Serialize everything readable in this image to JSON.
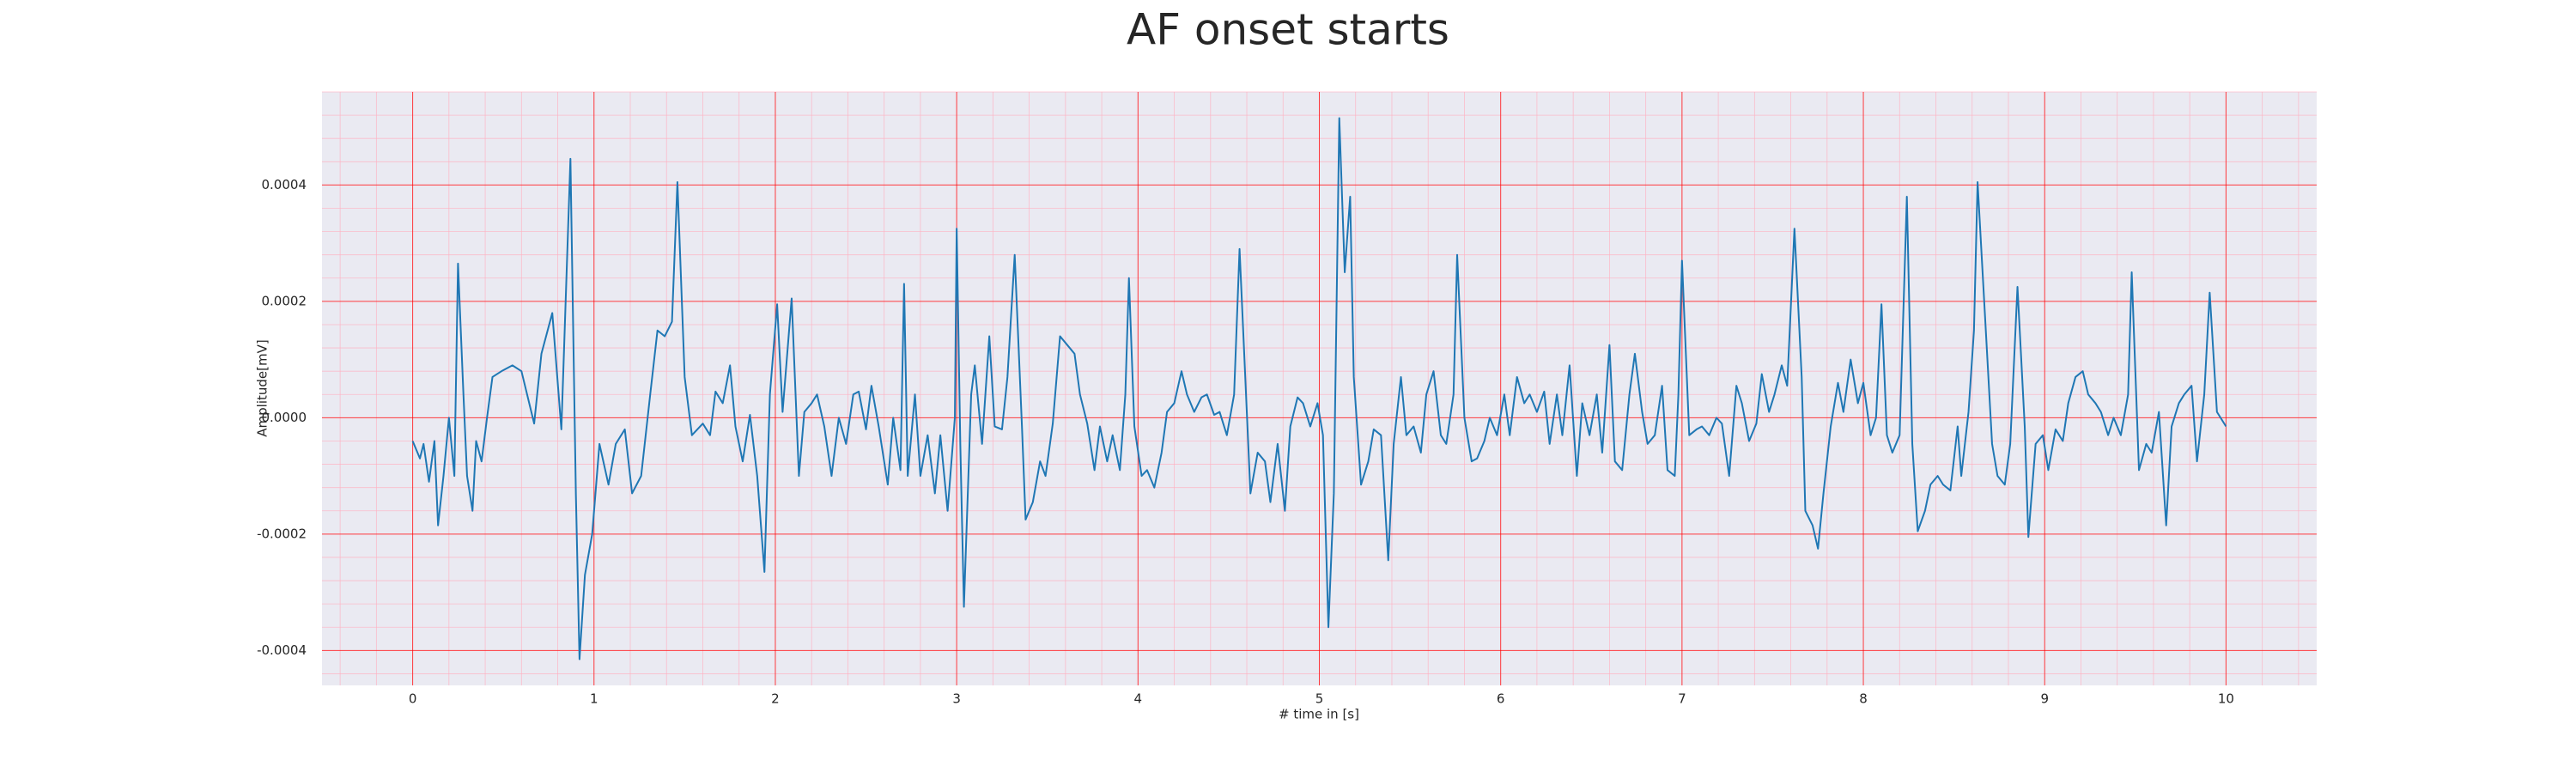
{
  "chart_data": {
    "type": "line",
    "title": "AF onset starts",
    "xlabel": "# time in [s]",
    "ylabel": "Amplitude[mV]",
    "xlim": [
      -0.5,
      10.5
    ],
    "ylim": [
      -0.00046,
      0.00056
    ],
    "xticks": [
      0,
      1,
      2,
      3,
      4,
      5,
      6,
      7,
      8,
      9,
      10
    ],
    "yticks": [
      -0.0004,
      -0.0002,
      {
        "value": 0,
        "label": "0.0000"
      },
      0.0002,
      0.0004
    ],
    "grid": true,
    "minor_grid": true,
    "grid_color": "#ff0000",
    "minor_grid_color": "#ffb0c0",
    "background": "#eaeaf2",
    "color": "#1f77b4",
    "x": [
      0,
      0.04,
      0.06,
      0.09,
      0.12,
      0.14,
      0.17,
      0.2,
      0.23,
      0.25,
      0.28,
      0.3,
      0.33,
      0.35,
      0.38,
      0.41,
      0.44,
      0.49,
      0.55,
      0.6,
      0.67,
      0.71,
      0.77,
      0.82,
      0.87,
      0.9,
      0.92,
      0.95,
      0.99,
      1.03,
      1.08,
      1.12,
      1.17,
      1.21,
      1.26,
      1.31,
      1.35,
      1.39,
      1.43,
      1.46,
      1.5,
      1.54,
      1.6,
      1.64,
      1.67,
      1.71,
      1.75,
      1.78,
      1.82,
      1.86,
      1.9,
      1.94,
      1.97,
      2.01,
      2.04,
      2.09,
      2.13,
      2.16,
      2.2,
      2.23,
      2.27,
      2.31,
      2.35,
      2.39,
      2.43,
      2.46,
      2.5,
      2.53,
      2.57,
      2.62,
      2.65,
      2.69,
      2.71,
      2.73,
      2.77,
      2.8,
      2.84,
      2.88,
      2.91,
      2.95,
      2.99,
      3.0,
      3.02,
      3.04,
      3.08,
      3.1,
      3.14,
      3.18,
      3.21,
      3.25,
      3.28,
      3.32,
      3.36,
      3.38,
      3.42,
      3.46,
      3.49,
      3.53,
      3.57,
      3.61,
      3.65,
      3.68,
      3.72,
      3.76,
      3.79,
      3.83,
      3.86,
      3.9,
      3.93,
      3.95,
      3.98,
      4.02,
      4.05,
      4.09,
      4.13,
      4.16,
      4.2,
      4.24,
      4.27,
      4.31,
      4.35,
      4.38,
      4.42,
      4.45,
      4.49,
      4.53,
      4.56,
      4.6,
      4.62,
      4.66,
      4.7,
      4.73,
      4.77,
      4.81,
      4.84,
      4.88,
      4.91,
      4.95,
      4.99,
      5.02,
      5.05,
      5.08,
      5.11,
      5.14,
      5.17,
      5.19,
      5.23,
      5.27,
      5.3,
      5.34,
      5.38,
      5.41,
      5.45,
      5.48,
      5.52,
      5.56,
      5.59,
      5.63,
      5.67,
      5.7,
      5.74,
      5.76,
      5.8,
      5.84,
      5.87,
      5.91,
      5.94,
      5.98,
      6.02,
      6.05,
      6.09,
      6.13,
      6.16,
      6.2,
      6.24,
      6.27,
      6.31,
      6.34,
      6.38,
      6.42,
      6.45,
      6.49,
      6.53,
      6.56,
      6.6,
      6.63,
      6.67,
      6.71,
      6.74,
      6.78,
      6.81,
      6.85,
      6.89,
      6.92,
      6.96,
      6.98,
      7.0,
      7.04,
      7.08,
      7.11,
      7.15,
      7.19,
      7.22,
      7.26,
      7.3,
      7.33,
      7.37,
      7.41,
      7.44,
      7.48,
      7.51,
      7.55,
      7.58,
      7.62,
      7.66,
      7.68,
      7.72,
      7.75,
      7.78,
      7.82,
      7.86,
      7.89,
      7.93,
      7.97,
      8.0,
      8.04,
      8.07,
      8.1,
      8.13,
      8.16,
      8.2,
      8.24,
      8.27,
      8.3,
      8.34,
      8.37,
      8.41,
      8.44,
      8.48,
      8.52,
      8.54,
      8.58,
      8.61,
      8.63,
      8.67,
      8.71,
      8.74,
      8.78,
      8.81,
      8.85,
      8.89,
      8.91,
      8.95,
      8.99,
      9.02,
      9.06,
      9.1,
      9.13,
      9.17,
      9.21,
      9.24,
      9.28,
      9.31,
      9.35,
      9.38,
      9.42,
      9.46,
      9.48,
      9.52,
      9.56,
      9.59,
      9.63,
      9.67,
      9.7,
      9.74,
      9.77,
      9.81,
      9.84,
      9.88,
      9.91,
      9.95,
      10.0
    ],
    "values": [
      -4e-05,
      -7e-05,
      -4.5e-05,
      -0.00011,
      -4e-05,
      -0.000185,
      -0.0001,
      0.0,
      -0.0001,
      0.000265,
      4e-05,
      -0.0001,
      -0.00016,
      -4e-05,
      -7.5e-05,
      0.0,
      7e-05,
      8e-05,
      9e-05,
      8e-05,
      -1e-05,
      0.00011,
      0.00018,
      -2e-05,
      0.000445,
      -0.00013,
      -0.000415,
      -0.00027,
      -0.0002,
      -4.5e-05,
      -0.000115,
      -4.5e-05,
      -2e-05,
      -0.00013,
      -0.0001,
      4e-05,
      0.00015,
      0.00014,
      0.000165,
      0.000405,
      7e-05,
      -3e-05,
      -1e-05,
      -3e-05,
      4.5e-05,
      2.5e-05,
      9e-05,
      -1.5e-05,
      -7.5e-05,
      5e-06,
      -0.0001,
      -0.000265,
      4e-05,
      0.000195,
      1e-05,
      0.000205,
      -0.0001,
      1e-05,
      2.5e-05,
      4e-05,
      -1.5e-05,
      -0.0001,
      0.0,
      -4.5e-05,
      4e-05,
      4.5e-05,
      -2e-05,
      5.5e-05,
      -1.5e-05,
      -0.000115,
      0.0,
      -9e-05,
      0.00023,
      -0.0001,
      4e-05,
      -0.0001,
      -3e-05,
      -0.00013,
      -3e-05,
      -0.00016,
      0.0,
      0.000325,
      -4.5e-05,
      -0.000325,
      4e-05,
      9e-05,
      -4.5e-05,
      0.00014,
      -1.5e-05,
      -2e-05,
      7e-05,
      0.00028,
      -1.5e-05,
      -0.000175,
      -0.000145,
      -7.5e-05,
      -0.0001,
      -1e-05,
      0.00014,
      0.000125,
      0.00011,
      4e-05,
      -1e-05,
      -9e-05,
      -1.5e-05,
      -7.5e-05,
      -3e-05,
      -9e-05,
      4e-05,
      0.00024,
      -1.5e-05,
      -0.0001,
      -9e-05,
      -0.00012,
      -6e-05,
      1e-05,
      2.5e-05,
      8e-05,
      4e-05,
      1e-05,
      3.5e-05,
      4e-05,
      5e-06,
      1e-05,
      -3e-05,
      4e-05,
      0.00029,
      1e-05,
      -0.00013,
      -6e-05,
      -7.5e-05,
      -0.000145,
      -4.5e-05,
      -0.00016,
      -1.5e-05,
      3.5e-05,
      2.5e-05,
      -1.5e-05,
      2.5e-05,
      -3e-05,
      -0.00036,
      -0.00013,
      0.000515,
      0.00025,
      0.00038,
      7e-05,
      -0.000115,
      -7.5e-05,
      -2e-05,
      -3e-05,
      -0.000245,
      -4.5e-05,
      7e-05,
      -3e-05,
      -1.5e-05,
      -6e-05,
      4e-05,
      8e-05,
      -3e-05,
      -4.5e-05,
      4e-05,
      0.00028,
      0.0,
      -7.5e-05,
      -7e-05,
      -4e-05,
      0.0,
      -3e-05,
      4e-05,
      -3e-05,
      7e-05,
      2.5e-05,
      4e-05,
      1e-05,
      4.5e-05,
      -4.5e-05,
      4e-05,
      -3e-05,
      9e-05,
      -0.0001,
      2.5e-05,
      -3e-05,
      4e-05,
      -6e-05,
      0.000125,
      -7.5e-05,
      -9e-05,
      4e-05,
      0.00011,
      1e-05,
      -4.5e-05,
      -3e-05,
      5.5e-05,
      -9e-05,
      -0.0001,
      4e-05,
      0.00027,
      -3e-05,
      -2e-05,
      -1.5e-05,
      -3e-05,
      0.0,
      -1e-05,
      -0.0001,
      5.5e-05,
      2.5e-05,
      -4e-05,
      -1e-05,
      7.5e-05,
      1e-05,
      4e-05,
      9e-05,
      5.5e-05,
      0.000325,
      7e-05,
      -0.00016,
      -0.000185,
      -0.000225,
      -0.00013,
      -1.5e-05,
      6e-05,
      1e-05,
      0.0001,
      2.5e-05,
      6e-05,
      -3e-05,
      0.0,
      0.000195,
      -3e-05,
      -6e-05,
      -3e-05,
      0.00038,
      -4.5e-05,
      -0.000195,
      -0.00016,
      -0.000115,
      -0.0001,
      -0.000115,
      -0.000125,
      -1.5e-05,
      -0.0001,
      1e-05,
      0.00015,
      0.000405,
      0.00018,
      -4.5e-05,
      -0.0001,
      -0.000115,
      -4.5e-05,
      0.000225,
      -1.5e-05,
      -0.000205,
      -4.5e-05,
      -3e-05,
      -9e-05,
      -2e-05,
      -4e-05,
      2.5e-05,
      7e-05,
      8e-05,
      4e-05,
      2.5e-05,
      1e-05,
      -3e-05,
      0.0,
      -3e-05,
      4e-05,
      0.00025,
      -9e-05,
      -4.5e-05,
      -6e-05,
      1e-05,
      -0.000185,
      -1.5e-05,
      2.5e-05,
      4e-05,
      5.5e-05,
      -7.5e-05,
      4e-05,
      0.000215,
      1e-05,
      -1.5e-05
    ]
  }
}
